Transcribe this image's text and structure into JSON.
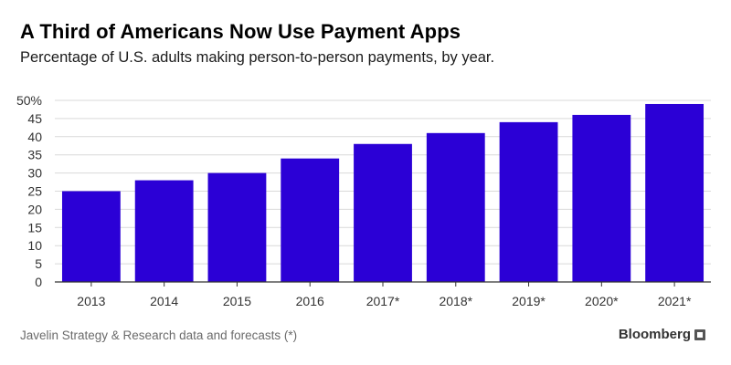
{
  "header": {
    "title": "A Third of Americans Now Use Payment Apps",
    "subtitle": "Percentage of U.S. adults making person-to-person payments, by year."
  },
  "footer": {
    "source": "Javelin Strategy & Research data and forecasts (*)",
    "brand": "Bloomberg"
  },
  "colors": {
    "bar": "#2b00d6",
    "grid": "#d9d9d9",
    "axis": "#333333",
    "text": "#000000"
  },
  "chart_data": {
    "type": "bar",
    "title": "A Third of Americans Now Use Payment Apps",
    "subtitle": "Percentage of U.S. adults making person-to-person payments, by year.",
    "categories": [
      "2013",
      "2014",
      "2015",
      "2016",
      "2017*",
      "2018*",
      "2019*",
      "2020*",
      "2021*"
    ],
    "values": [
      25,
      28,
      30,
      34,
      38,
      41,
      44,
      46,
      49
    ],
    "ylim": [
      0,
      50
    ],
    "yticks": [
      0,
      5,
      10,
      15,
      20,
      25,
      30,
      35,
      40,
      45,
      50
    ],
    "ytick_labels": [
      "0",
      "5",
      "10",
      "15",
      "20",
      "25",
      "30",
      "35",
      "40",
      "45",
      "50%"
    ],
    "xlabel": "",
    "ylabel": "",
    "grid": true,
    "legend": "none"
  }
}
